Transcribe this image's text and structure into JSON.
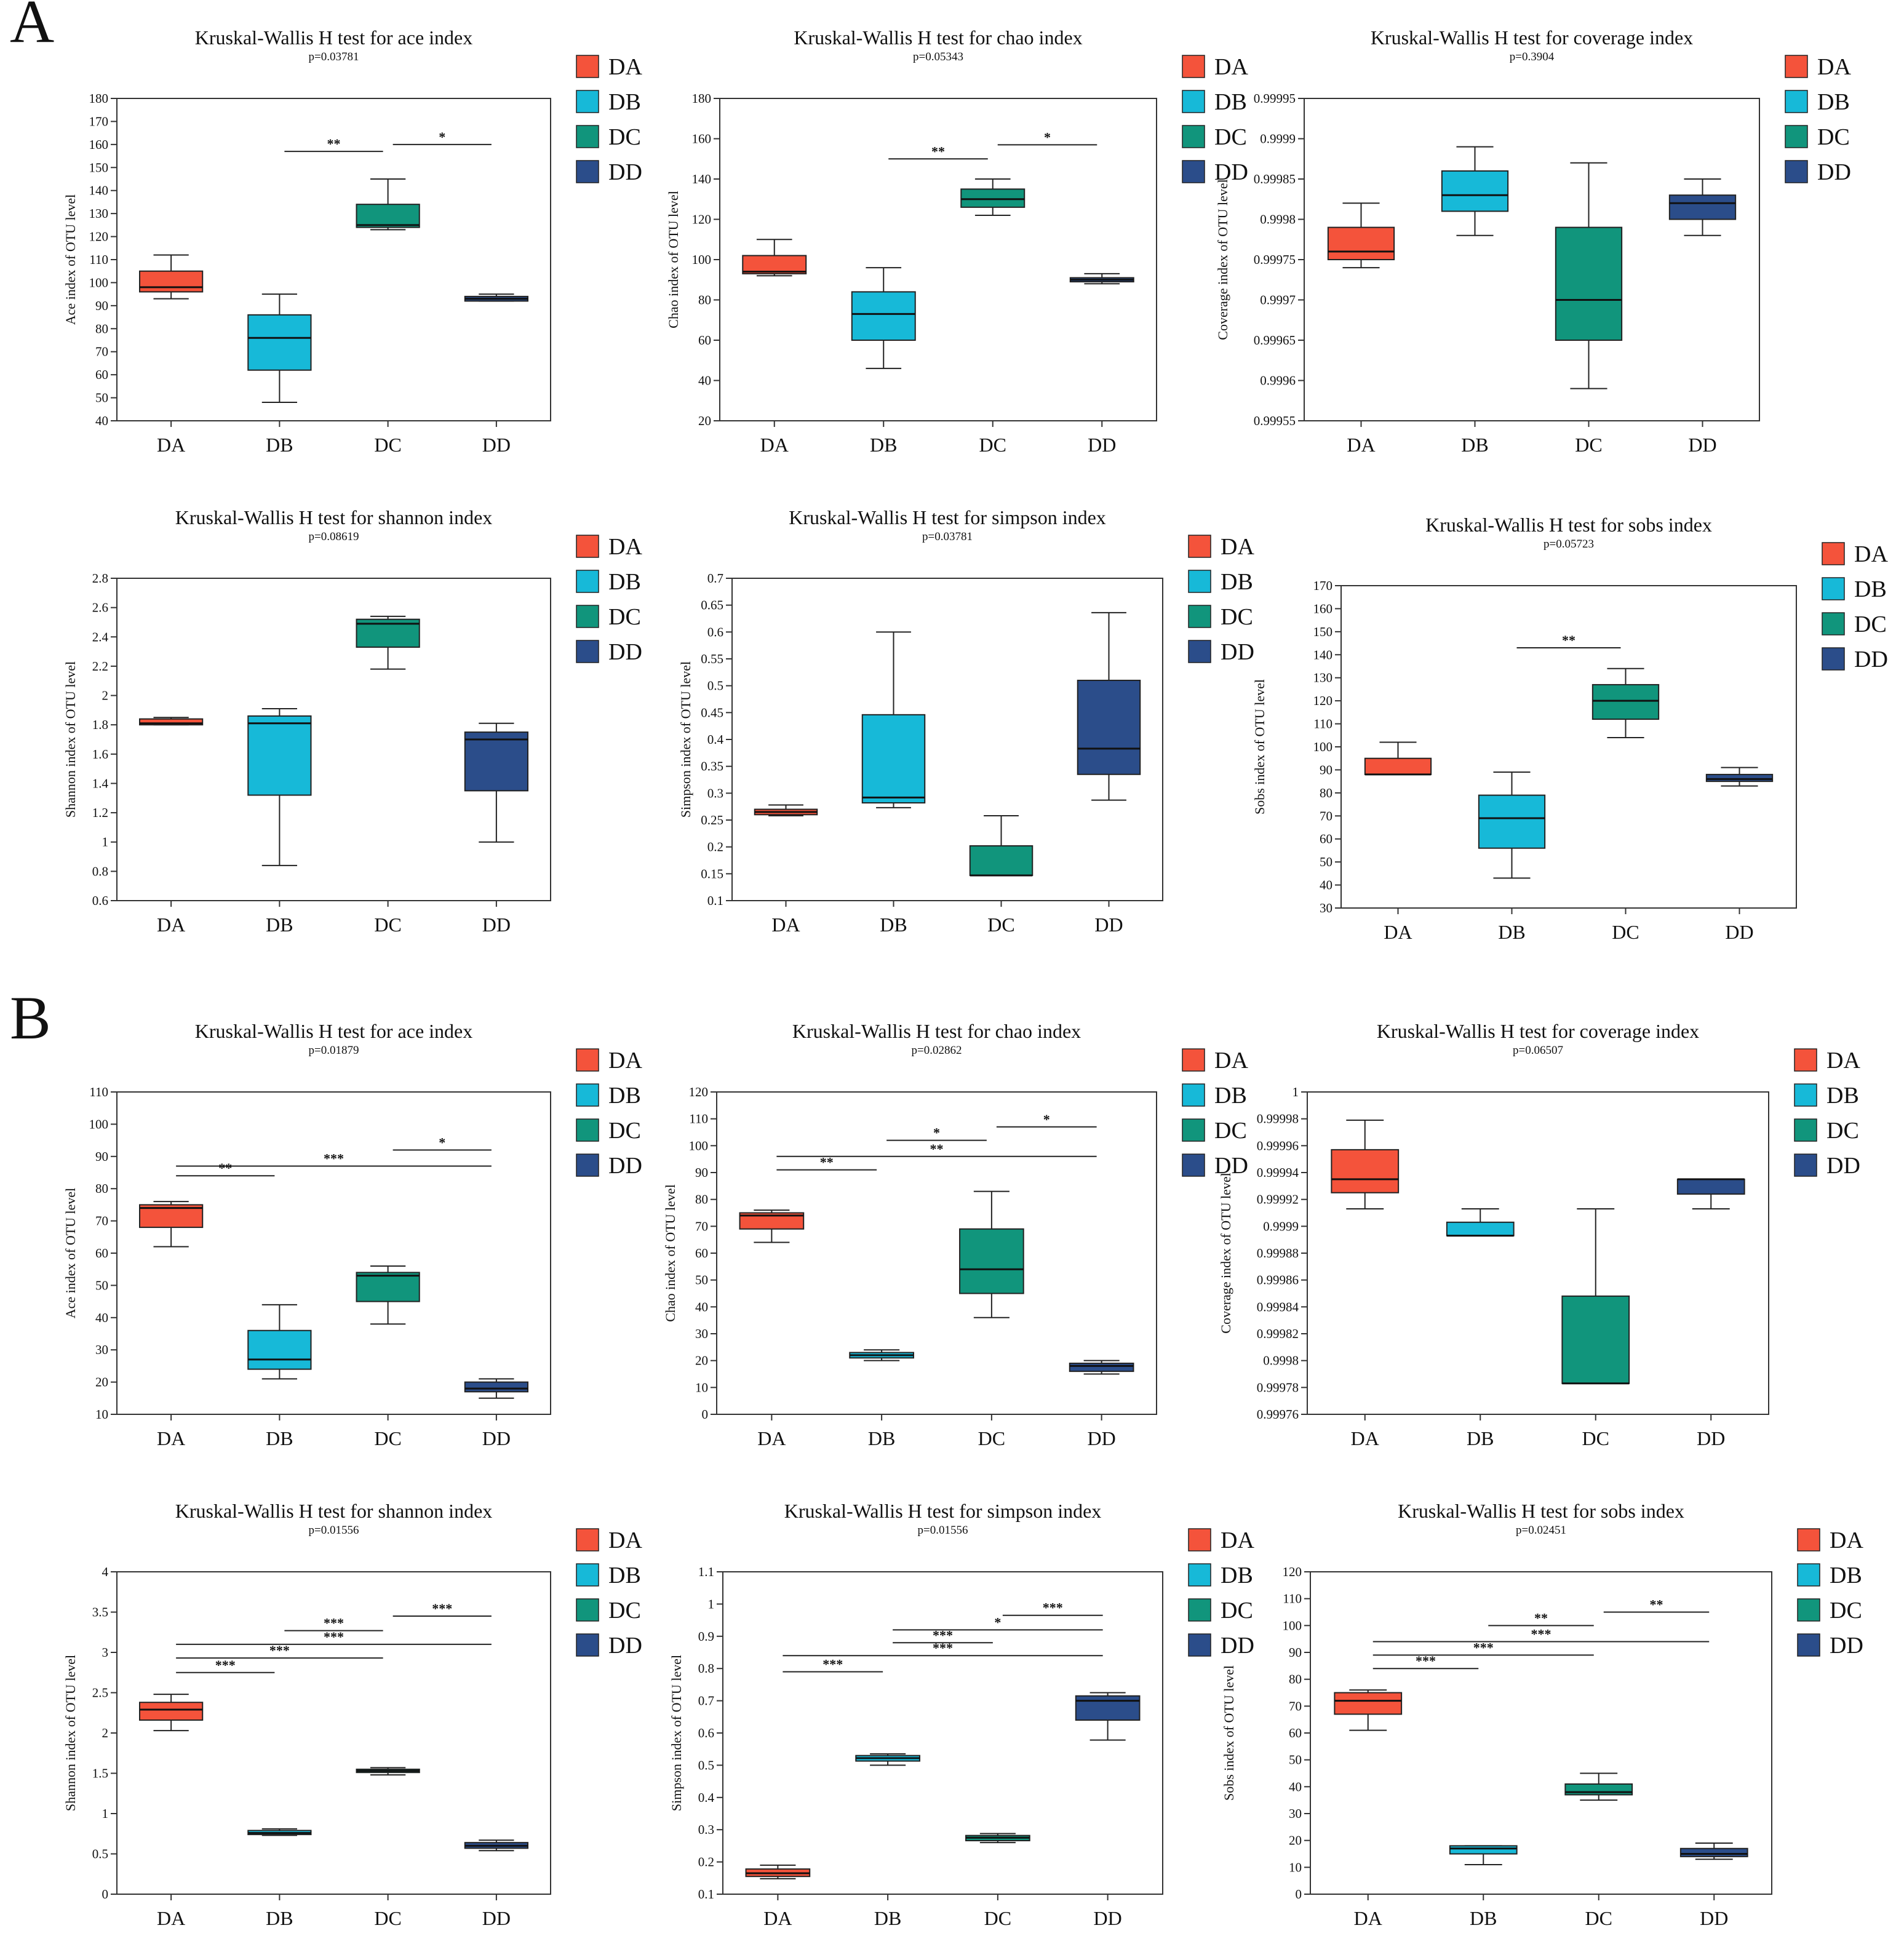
{
  "panel_labels": [
    "A",
    "B"
  ],
  "groups": [
    "DA",
    "DB",
    "DC",
    "DD"
  ],
  "colors": {
    "DA": "#f4533b",
    "DB": "#17b9d8",
    "DC": "#11957c",
    "DD": "#2b4d8a"
  },
  "chart_data": [
    {
      "type": "box",
      "panel": "A",
      "title": "Kruskal-Wallis H test for ace index",
      "pvalue": "p=0.03781",
      "ylabel": "Ace index of OTU level",
      "categories": [
        "DA",
        "DB",
        "DC",
        "DD"
      ],
      "ylim": [
        40,
        180
      ],
      "yticks": [
        "40",
        "50",
        "60",
        "70",
        "80",
        "90",
        "100",
        "110",
        "120",
        "130",
        "140",
        "150",
        "160",
        "170",
        "180"
      ],
      "boxes": [
        {
          "group": "DA",
          "min": 93,
          "q1": 96,
          "median": 98,
          "q3": 105,
          "max": 112
        },
        {
          "group": "DB",
          "min": 48,
          "q1": 62,
          "median": 76,
          "q3": 86,
          "max": 95
        },
        {
          "group": "DC",
          "min": 123,
          "q1": 124,
          "median": 125,
          "q3": 134,
          "max": 145
        },
        {
          "group": "DD",
          "min": 92,
          "q1": 92,
          "median": 93,
          "q3": 94,
          "max": 95
        }
      ],
      "sig": [
        {
          "from": 1,
          "to": 2,
          "y": 157,
          "label": "**"
        },
        {
          "from": 2,
          "to": 3,
          "y": 160,
          "label": "*"
        }
      ]
    },
    {
      "type": "box",
      "panel": "A",
      "title": "Kruskal-Wallis H test for chao index",
      "pvalue": "p=0.05343",
      "ylabel": "Chao index of OTU level",
      "categories": [
        "DA",
        "DB",
        "DC",
        "DD"
      ],
      "ylim": [
        20,
        180
      ],
      "yticks": [
        "20",
        "40",
        "60",
        "80",
        "100",
        "120",
        "140",
        "160",
        "180"
      ],
      "boxes": [
        {
          "group": "DA",
          "min": 92,
          "q1": 93,
          "median": 94,
          "q3": 102,
          "max": 110
        },
        {
          "group": "DB",
          "min": 46,
          "q1": 60,
          "median": 73,
          "q3": 84,
          "max": 96
        },
        {
          "group": "DC",
          "min": 122,
          "q1": 126,
          "median": 130,
          "q3": 135,
          "max": 140
        },
        {
          "group": "DD",
          "min": 88,
          "q1": 89,
          "median": 90,
          "q3": 91,
          "max": 93
        }
      ],
      "sig": [
        {
          "from": 1,
          "to": 2,
          "y": 150,
          "label": "**"
        },
        {
          "from": 2,
          "to": 3,
          "y": 157,
          "label": "*"
        }
      ]
    },
    {
      "type": "box",
      "panel": "A",
      "title": "Kruskal-Wallis H test for coverage index",
      "pvalue": "p=0.3904",
      "ylabel": "Coverage index of OTU level",
      "categories": [
        "DA",
        "DB",
        "DC",
        "DD"
      ],
      "ylim": [
        0.99955,
        0.99995
      ],
      "yticks": [
        "0.99955",
        "0.9996",
        "0.99965",
        "0.9997",
        "0.99975",
        "0.9998",
        "0.99985",
        "0.9999",
        "0.99995"
      ],
      "boxes": [
        {
          "group": "DA",
          "min": 0.99974,
          "q1": 0.99975,
          "median": 0.99976,
          "q3": 0.99979,
          "max": 0.99982
        },
        {
          "group": "DB",
          "min": 0.99978,
          "q1": 0.99981,
          "median": 0.99983,
          "q3": 0.99986,
          "max": 0.99989
        },
        {
          "group": "DC",
          "min": 0.99959,
          "q1": 0.99965,
          "median": 0.9997,
          "q3": 0.99979,
          "max": 0.99987
        },
        {
          "group": "DD",
          "min": 0.99978,
          "q1": 0.9998,
          "median": 0.99982,
          "q3": 0.99983,
          "max": 0.99985
        }
      ],
      "sig": []
    },
    {
      "type": "box",
      "panel": "A",
      "title": "Kruskal-Wallis H test for shannon index",
      "pvalue": "p=0.08619",
      "ylabel": "Shannon index of OTU level",
      "categories": [
        "DA",
        "DB",
        "DC",
        "DD"
      ],
      "ylim": [
        0.6,
        2.8
      ],
      "yticks": [
        "0.6",
        "0.8",
        "1",
        "1.2",
        "1.4",
        "1.6",
        "1.8",
        "2",
        "2.2",
        "2.4",
        "2.6",
        "2.8"
      ],
      "boxes": [
        {
          "group": "DA",
          "min": 1.8,
          "q1": 1.8,
          "median": 1.81,
          "q3": 1.84,
          "max": 1.85
        },
        {
          "group": "DB",
          "min": 0.84,
          "q1": 1.32,
          "median": 1.81,
          "q3": 1.86,
          "max": 1.91
        },
        {
          "group": "DC",
          "min": 2.18,
          "q1": 2.33,
          "median": 2.49,
          "q3": 2.52,
          "max": 2.54
        },
        {
          "group": "DD",
          "min": 1.0,
          "q1": 1.35,
          "median": 1.7,
          "q3": 1.75,
          "max": 1.81
        }
      ],
      "sig": []
    },
    {
      "type": "box",
      "panel": "A",
      "title": "Kruskal-Wallis H test for simpson index",
      "pvalue": "p=0.03781",
      "ylabel": "Simpson index of OTU level",
      "categories": [
        "DA",
        "DB",
        "DC",
        "DD"
      ],
      "ylim": [
        0.1,
        0.7
      ],
      "yticks": [
        "0.1",
        "0.15",
        "0.2",
        "0.25",
        "0.3",
        "0.35",
        "0.4",
        "0.45",
        "0.5",
        "0.55",
        "0.6",
        "0.65",
        "0.7"
      ],
      "boxes": [
        {
          "group": "DA",
          "min": 0.258,
          "q1": 0.26,
          "median": 0.265,
          "q3": 0.27,
          "max": 0.278
        },
        {
          "group": "DB",
          "min": 0.273,
          "q1": 0.282,
          "median": 0.292,
          "q3": 0.446,
          "max": 0.6
        },
        {
          "group": "DC",
          "min": 0.147,
          "q1": 0.147,
          "median": 0.147,
          "q3": 0.202,
          "max": 0.258
        },
        {
          "group": "DD",
          "min": 0.287,
          "q1": 0.335,
          "median": 0.383,
          "q3": 0.51,
          "max": 0.636
        }
      ],
      "sig": []
    },
    {
      "type": "box",
      "panel": "A",
      "title": "Kruskal-Wallis H test for sobs index",
      "pvalue": "p=0.05723",
      "ylabel": "Sobs index of OTU level",
      "categories": [
        "DA",
        "DB",
        "DC",
        "DD"
      ],
      "ylim": [
        30,
        170
      ],
      "yticks": [
        "30",
        "40",
        "50",
        "60",
        "70",
        "80",
        "90",
        "100",
        "110",
        "120",
        "130",
        "140",
        "150",
        "160",
        "170"
      ],
      "boxes": [
        {
          "group": "DA",
          "min": 88,
          "q1": 88,
          "median": 88,
          "q3": 95,
          "max": 102
        },
        {
          "group": "DB",
          "min": 43,
          "q1": 56,
          "median": 69,
          "q3": 79,
          "max": 89
        },
        {
          "group": "DC",
          "min": 104,
          "q1": 112,
          "median": 120,
          "q3": 127,
          "max": 134
        },
        {
          "group": "DD",
          "min": 83,
          "q1": 85,
          "median": 86,
          "q3": 88,
          "max": 91
        }
      ],
      "sig": [
        {
          "from": 1,
          "to": 2,
          "y": 143,
          "label": "**"
        }
      ]
    },
    {
      "type": "box",
      "panel": "B",
      "title": "Kruskal-Wallis H test for ace index",
      "pvalue": "p=0.01879",
      "ylabel": "Ace index of OTU level",
      "categories": [
        "DA",
        "DB",
        "DC",
        "DD"
      ],
      "ylim": [
        10,
        110
      ],
      "yticks": [
        "10",
        "20",
        "30",
        "40",
        "50",
        "60",
        "70",
        "80",
        "90",
        "100",
        "110"
      ],
      "boxes": [
        {
          "group": "DA",
          "min": 62,
          "q1": 68,
          "median": 74,
          "q3": 75,
          "max": 76
        },
        {
          "group": "DB",
          "min": 21,
          "q1": 24,
          "median": 27,
          "q3": 36,
          "max": 44
        },
        {
          "group": "DC",
          "min": 38,
          "q1": 45,
          "median": 53,
          "q3": 54,
          "max": 56
        },
        {
          "group": "DD",
          "min": 15,
          "q1": 17,
          "median": 18,
          "q3": 20,
          "max": 21
        }
      ],
      "sig": [
        {
          "from": 0,
          "to": 1,
          "y": 84,
          "label": "**"
        },
        {
          "from": 0,
          "to": 3,
          "y": 87,
          "label": "***"
        },
        {
          "from": 2,
          "to": 3,
          "y": 92,
          "label": "*"
        }
      ]
    },
    {
      "type": "box",
      "panel": "B",
      "title": "Kruskal-Wallis H test for chao index",
      "pvalue": "p=0.02862",
      "ylabel": "Chao index of OTU level",
      "categories": [
        "DA",
        "DB",
        "DC",
        "DD"
      ],
      "ylim": [
        0,
        120
      ],
      "yticks": [
        "0",
        "10",
        "20",
        "30",
        "40",
        "50",
        "60",
        "70",
        "80",
        "90",
        "100",
        "110",
        "120"
      ],
      "boxes": [
        {
          "group": "DA",
          "min": 64,
          "q1": 69,
          "median": 74,
          "q3": 75,
          "max": 76
        },
        {
          "group": "DB",
          "min": 20,
          "q1": 21,
          "median": 22,
          "q3": 23,
          "max": 24
        },
        {
          "group": "DC",
          "min": 36,
          "q1": 45,
          "median": 54,
          "q3": 69,
          "max": 83
        },
        {
          "group": "DD",
          "min": 15,
          "q1": 16,
          "median": 18,
          "q3": 19,
          "max": 20
        }
      ],
      "sig": [
        {
          "from": 0,
          "to": 1,
          "y": 91,
          "label": "**"
        },
        {
          "from": 0,
          "to": 3,
          "y": 96,
          "label": "**"
        },
        {
          "from": 1,
          "to": 2,
          "y": 102,
          "label": "*"
        },
        {
          "from": 2,
          "to": 3,
          "y": 107,
          "label": "*"
        }
      ]
    },
    {
      "type": "box",
      "panel": "B",
      "title": "Kruskal-Wallis H test for coverage index",
      "pvalue": "p=0.06507",
      "ylabel": "Coverage index of OTU level",
      "categories": [
        "DA",
        "DB",
        "DC",
        "DD"
      ],
      "ylim": [
        0.99976,
        1.0
      ],
      "yticks": [
        "0.99976",
        "0.99978",
        "0.9998",
        "0.99982",
        "0.99984",
        "0.99986",
        "0.99988",
        "0.9999",
        "0.99992",
        "0.99994",
        "0.99996",
        "0.99998",
        "1"
      ],
      "boxes": [
        {
          "group": "DA",
          "min": 0.999913,
          "q1": 0.999925,
          "median": 0.999935,
          "q3": 0.999957,
          "max": 0.999979
        },
        {
          "group": "DB",
          "min": 0.999893,
          "q1": 0.999893,
          "median": 0.999893,
          "q3": 0.999903,
          "max": 0.999913
        },
        {
          "group": "DC",
          "min": 0.999783,
          "q1": 0.999783,
          "median": 0.999783,
          "q3": 0.999848,
          "max": 0.999913
        },
        {
          "group": "DD",
          "min": 0.999913,
          "q1": 0.999924,
          "median": 0.999935,
          "q3": 0.999935,
          "max": 0.999935
        }
      ],
      "sig": []
    },
    {
      "type": "box",
      "panel": "B",
      "title": "Kruskal-Wallis H test for shannon index",
      "pvalue": "p=0.01556",
      "ylabel": "Shannon index of OTU level",
      "categories": [
        "DA",
        "DB",
        "DC",
        "DD"
      ],
      "ylim": [
        0,
        4
      ],
      "yticks": [
        "0",
        "0.5",
        "1",
        "1.5",
        "2",
        "2.5",
        "3",
        "3.5",
        "4"
      ],
      "boxes": [
        {
          "group": "DA",
          "min": 2.03,
          "q1": 2.16,
          "median": 2.29,
          "q3": 2.38,
          "max": 2.48
        },
        {
          "group": "DB",
          "min": 0.73,
          "q1": 0.74,
          "median": 0.76,
          "q3": 0.79,
          "max": 0.81
        },
        {
          "group": "DC",
          "min": 1.48,
          "q1": 1.51,
          "median": 1.53,
          "q3": 1.55,
          "max": 1.57
        },
        {
          "group": "DD",
          "min": 0.54,
          "q1": 0.57,
          "median": 0.6,
          "q3": 0.64,
          "max": 0.67
        }
      ],
      "sig": [
        {
          "from": 0,
          "to": 1,
          "y": 2.75,
          "label": "***"
        },
        {
          "from": 0,
          "to": 2,
          "y": 2.93,
          "label": "***"
        },
        {
          "from": 0,
          "to": 3,
          "y": 3.1,
          "label": "***"
        },
        {
          "from": 1,
          "to": 2,
          "y": 3.27,
          "label": "***"
        },
        {
          "from": 2,
          "to": 3,
          "y": 3.45,
          "label": "***"
        }
      ]
    },
    {
      "type": "box",
      "panel": "B",
      "title": "Kruskal-Wallis H test for simpson index",
      "pvalue": "p=0.01556",
      "ylabel": "Simpson index of OTU level",
      "categories": [
        "DA",
        "DB",
        "DC",
        "DD"
      ],
      "ylim": [
        0.1,
        1.1
      ],
      "yticks": [
        "0.1",
        "0.2",
        "0.3",
        "0.4",
        "0.5",
        "0.6",
        "0.7",
        "0.8",
        "0.9",
        "1",
        "1.1"
      ],
      "boxes": [
        {
          "group": "DA",
          "min": 0.148,
          "q1": 0.155,
          "median": 0.165,
          "q3": 0.178,
          "max": 0.19
        },
        {
          "group": "DB",
          "min": 0.5,
          "q1": 0.513,
          "median": 0.522,
          "q3": 0.53,
          "max": 0.535
        },
        {
          "group": "DC",
          "min": 0.26,
          "q1": 0.266,
          "median": 0.275,
          "q3": 0.282,
          "max": 0.288
        },
        {
          "group": "DD",
          "min": 0.578,
          "q1": 0.64,
          "median": 0.7,
          "q3": 0.715,
          "max": 0.725
        }
      ],
      "sig": [
        {
          "from": 0,
          "to": 1,
          "y": 0.79,
          "label": "***"
        },
        {
          "from": 0,
          "to": 3,
          "y": 0.84,
          "label": "***"
        },
        {
          "from": 1,
          "to": 2,
          "y": 0.88,
          "label": "***"
        },
        {
          "from": 1,
          "to": 3,
          "y": 0.92,
          "label": "*"
        },
        {
          "from": 2,
          "to": 3,
          "y": 0.965,
          "label": "***"
        }
      ]
    },
    {
      "type": "box",
      "panel": "B",
      "title": "Kruskal-Wallis H test for sobs index",
      "pvalue": "p=0.02451",
      "ylabel": "Sobs index of OTU level",
      "categories": [
        "DA",
        "DB",
        "DC",
        "DD"
      ],
      "ylim": [
        0,
        120
      ],
      "yticks": [
        "0",
        "10",
        "20",
        "30",
        "40",
        "50",
        "60",
        "70",
        "80",
        "90",
        "100",
        "110",
        "120"
      ],
      "boxes": [
        {
          "group": "DA",
          "min": 61,
          "q1": 67,
          "median": 72,
          "q3": 75,
          "max": 76
        },
        {
          "group": "DB",
          "min": 11,
          "q1": 15,
          "median": 17,
          "q3": 18,
          "max": 18
        },
        {
          "group": "DC",
          "min": 35,
          "q1": 37,
          "median": 38,
          "q3": 41,
          "max": 45
        },
        {
          "group": "DD",
          "min": 13,
          "q1": 14,
          "median": 15,
          "q3": 17,
          "max": 19
        }
      ],
      "sig": [
        {
          "from": 0,
          "to": 1,
          "y": 84,
          "label": "***"
        },
        {
          "from": 0,
          "to": 2,
          "y": 89,
          "label": "***"
        },
        {
          "from": 0,
          "to": 3,
          "y": 94,
          "label": "***"
        },
        {
          "from": 1,
          "to": 2,
          "y": 100,
          "label": "**"
        },
        {
          "from": 2,
          "to": 3,
          "y": 105,
          "label": "**"
        }
      ]
    }
  ]
}
